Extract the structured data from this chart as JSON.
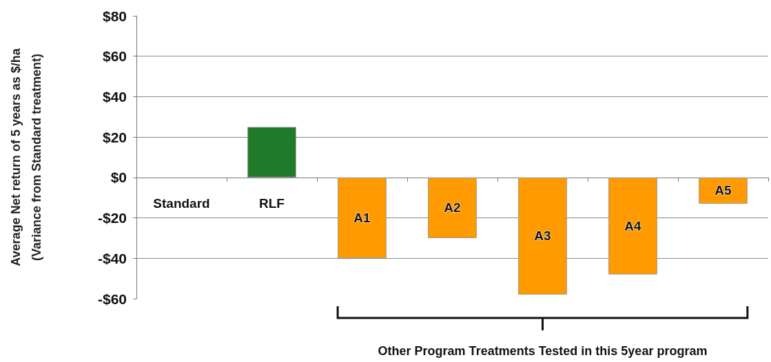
{
  "chart_data": {
    "type": "bar",
    "ylabel": "Average Net return of 5 years as $/ha\n(Variance from Standard treatment)",
    "categories": [
      "Standard",
      "RLF",
      "A1",
      "A2",
      "A3",
      "A4",
      "A5"
    ],
    "values": [
      0,
      25,
      -40,
      -30,
      -58,
      -48,
      -13
    ],
    "colors": [
      "#1f7a2a",
      "#1f7a2a",
      "#ff9a00",
      "#ff9a00",
      "#ff9a00",
      "#ff9a00",
      "#ff9a00"
    ],
    "ylim": [
      -60,
      80
    ],
    "yticks": [
      {
        "value": -60,
        "label": "-$60"
      },
      {
        "value": -40,
        "label": "-$40"
      },
      {
        "value": -20,
        "label": "-$20"
      },
      {
        "value": 0,
        "label": "$0"
      },
      {
        "value": 20,
        "label": "$20"
      },
      {
        "value": 40,
        "label": "$40"
      },
      {
        "value": 60,
        "label": "$60"
      },
      {
        "value": 80,
        "label": "$80"
      }
    ],
    "grid": "y",
    "annotations": [
      "Other Program Treatments Tested in this 5year program"
    ]
  }
}
